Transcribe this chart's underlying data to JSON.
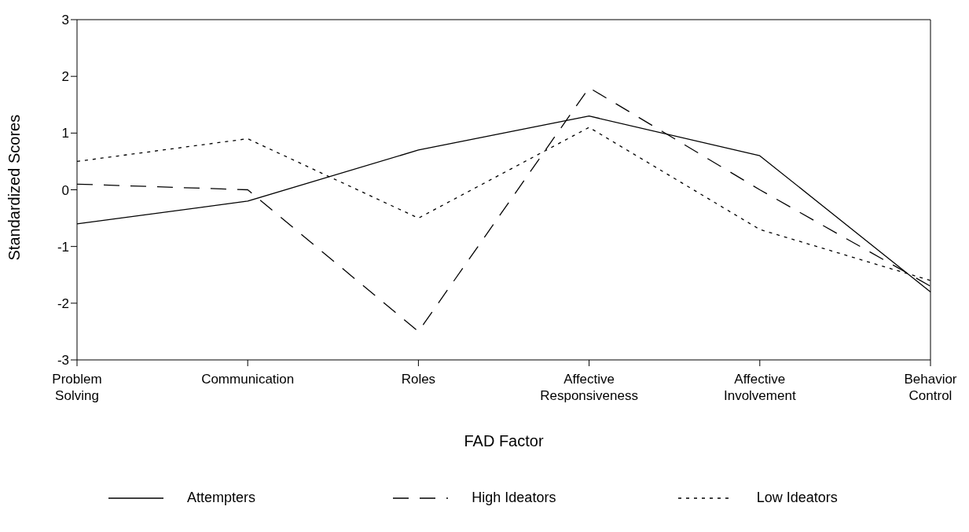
{
  "chart_data": {
    "type": "line",
    "xlabel": "FAD Factor",
    "ylabel": "Standardized Scores",
    "categories": [
      "Problem Solving",
      "Communication",
      "Roles",
      "Affective Responsiveness",
      "Affective Involvement",
      "Behavior Control"
    ],
    "series": [
      {
        "name": "Attempters",
        "color": "#000000",
        "line_style": "solid",
        "values": [
          -0.6,
          -0.2,
          0.7,
          1.3,
          0.6,
          -1.8
        ]
      },
      {
        "name": "High Ideators",
        "color": "#000000",
        "line_style": "dashed",
        "values": [
          0.1,
          0.0,
          -2.5,
          1.8,
          0.0,
          -1.7
        ]
      },
      {
        "name": "Low Ideators",
        "color": "#000000",
        "line_style": "dotted",
        "values": [
          0.5,
          0.9,
          -0.5,
          1.1,
          -0.7,
          -1.6
        ]
      }
    ],
    "ylim": [
      -3,
      3
    ],
    "yticks": [
      -3,
      -2,
      -1,
      0,
      1,
      2,
      3
    ],
    "grid": false,
    "legend": "bottom",
    "marker": "none"
  }
}
